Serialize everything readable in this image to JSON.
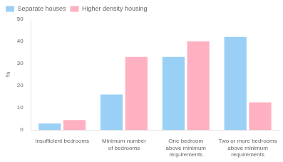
{
  "chart_data": {
    "type": "bar",
    "categories": [
      "Insufficient bedrooms",
      "Minimum number\nof bedrooms",
      "One bedroom\nabove minimum\nrequirements",
      "Two or more bedrooms\nabove minimum\nrequirements"
    ],
    "series": [
      {
        "name": "Separate houses",
        "values": [
          3,
          16,
          33,
          42
        ]
      },
      {
        "name": "Higher density housing",
        "values": [
          4.5,
          33,
          40,
          12.5
        ]
      }
    ],
    "y_label": "%",
    "ylim": [
      0,
      50
    ],
    "yticks": [
      0,
      10,
      20,
      30,
      40,
      50
    ],
    "grid": false,
    "legend": "upper left"
  }
}
